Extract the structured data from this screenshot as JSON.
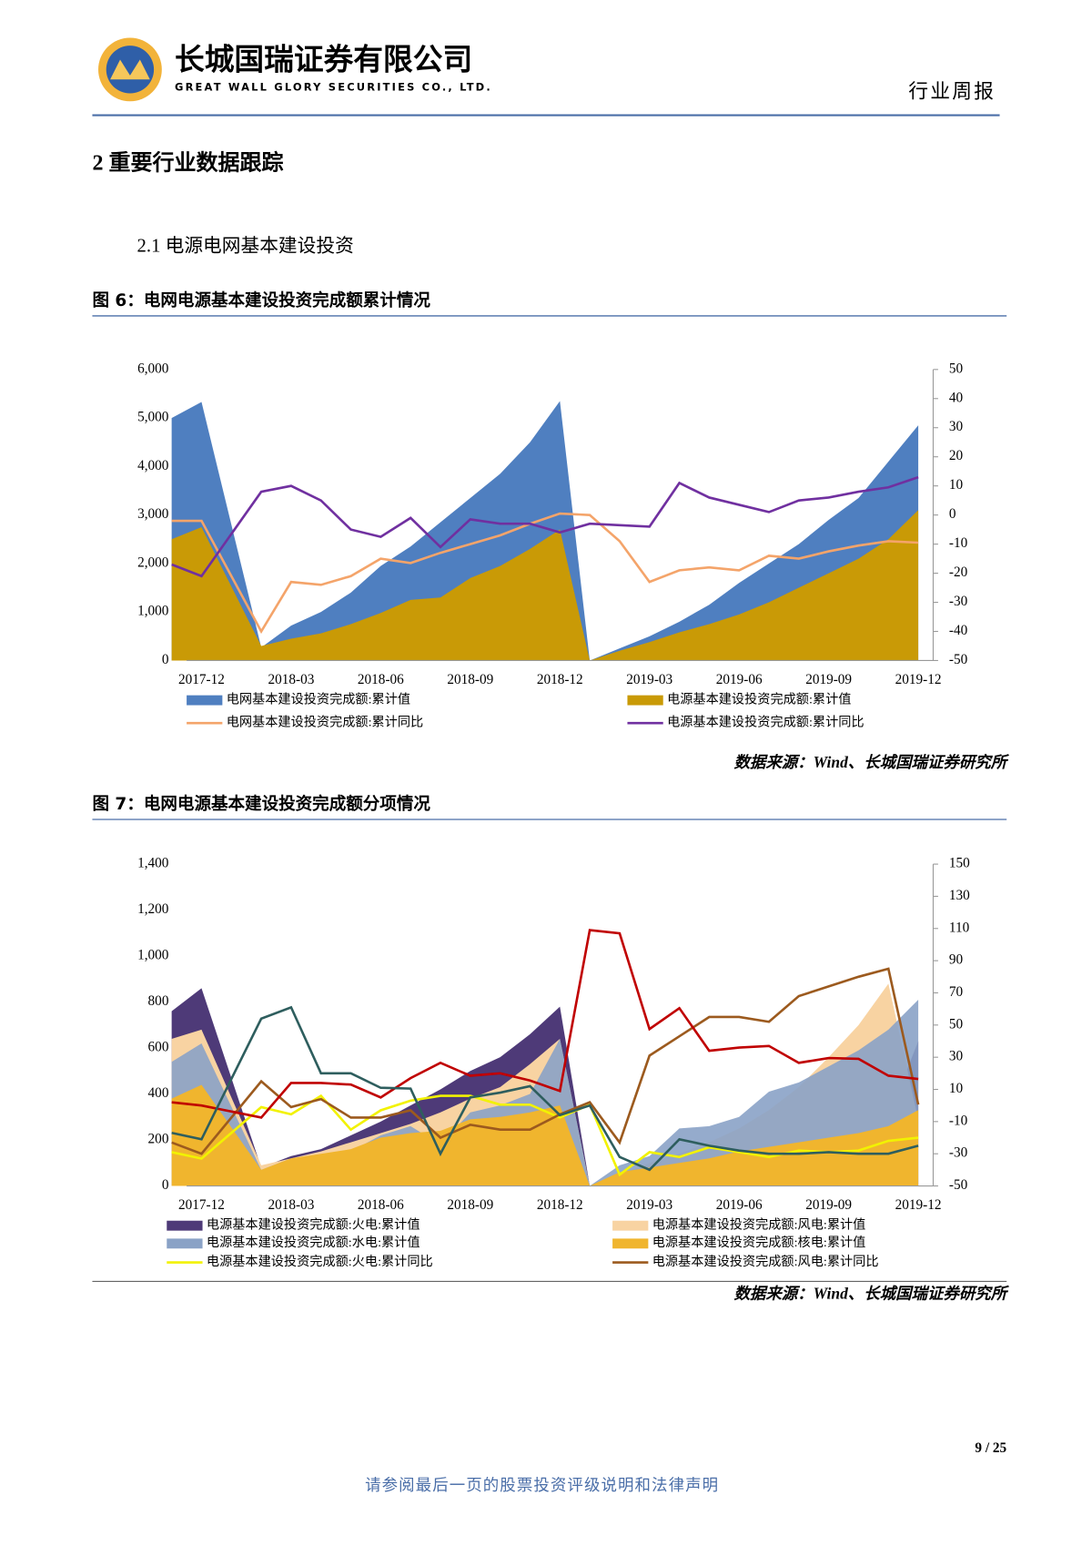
{
  "header": {
    "company": "长城国瑞证券有限公司",
    "company_en": "GREAT WALL GLORY SECURITIES CO., LTD.",
    "report_type": "行业周报"
  },
  "section": {
    "title": "2  重要行业数据跟踪",
    "subtitle": "2.1 电源电网基本建设投资"
  },
  "footer": {
    "page": "9 / 25",
    "disclaimer": "请参阅最后一页的股票投资评级说明和法律声明"
  },
  "chart_data": [
    {
      "type": "combo",
      "title": "图 6：电网电源基本建设投资完成额累计情况",
      "source": "数据来源：Wind、长城国瑞证券研究所",
      "x": [
        "2017-11",
        "2017-12",
        "2018-02",
        "2018-03",
        "2018-04",
        "2018-05",
        "2018-06",
        "2018-07",
        "2018-08",
        "2018-09",
        "2018-10",
        "2018-11",
        "2018-12",
        "2019-01",
        "2019-02",
        "2019-03",
        "2019-04",
        "2019-05",
        "2019-06",
        "2019-07",
        "2019-08",
        "2019-09",
        "2019-10",
        "2019-11",
        "2019-12"
      ],
      "xticks": [
        "2017-12",
        "2018-03",
        "2018-06",
        "2018-09",
        "2018-12",
        "2019-03",
        "2019-06",
        "2019-09",
        "2019-12"
      ],
      "ylim": [
        0,
        6000
      ],
      "yticks": [
        0,
        {
          "value": 1000,
          "label": "1,000"
        },
        {
          "value": 2000,
          "label": "2,000"
        },
        {
          "value": 3000,
          "label": "3,000"
        },
        {
          "value": 4000,
          "label": "4,000"
        },
        {
          "value": 5000,
          "label": "5,000"
        },
        {
          "value": 6000,
          "label": "6,000"
        }
      ],
      "y2lim": [
        -50,
        50
      ],
      "y2ticks": [
        -50,
        -40,
        -30,
        -20,
        -10,
        0,
        10,
        20,
        30,
        40,
        50
      ],
      "series": [
        {
          "name": "电网基本建设投资完成额:累计值",
          "kind": "area",
          "color": "#4f7fc0",
          "values": [
            5000,
            5330,
            270,
            720,
            1000,
            1400,
            1950,
            2350,
            2850,
            3350,
            3850,
            4500,
            5350,
            0,
            250,
            500,
            800,
            1150,
            1600,
            2000,
            2400,
            2900,
            3350,
            4100,
            4850
          ]
        },
        {
          "name": "电源基本建设投资完成额:累计值",
          "kind": "area",
          "color": "#c99a06",
          "values": [
            2500,
            2750,
            300,
            450,
            560,
            750,
            980,
            1250,
            1300,
            1700,
            1950,
            2300,
            2700,
            0,
            200,
            380,
            580,
            750,
            950,
            1200,
            1500,
            1800,
            2100,
            2500,
            3100
          ]
        },
        {
          "name": "电网基本建设投资完成额:累计同比",
          "kind": "line",
          "axis": "y2",
          "color": "#f4a46a",
          "values": [
            -2,
            -2,
            -40,
            -23,
            -24,
            -21,
            -15,
            -16.5,
            -13,
            -10,
            -7,
            -3,
            0.5,
            0,
            -9,
            -23,
            -19,
            -18,
            -19,
            -14,
            -15,
            -12.5,
            -10.5,
            -9,
            -9.5
          ]
        },
        {
          "name": "电源基本建设投资完成额:累计同比",
          "kind": "line",
          "axis": "y2",
          "color": "#7030a0",
          "values": [
            -17,
            -21,
            8,
            10,
            5,
            -5,
            -7.5,
            -1,
            -11,
            -1.5,
            -3,
            -3,
            -6,
            -3,
            -3.5,
            -4,
            11,
            6,
            3.5,
            1,
            5,
            6,
            8,
            9.5,
            13
          ]
        }
      ]
    },
    {
      "type": "combo",
      "title": "图 7：电网电源基本建设投资完成额分项情况",
      "source": "数据来源：Wind、长城国瑞证券研究所",
      "x": [
        "2017-11",
        "2017-12",
        "2018-02",
        "2018-03",
        "2018-04",
        "2018-05",
        "2018-06",
        "2018-07",
        "2018-08",
        "2018-09",
        "2018-10",
        "2018-11",
        "2018-12",
        "2019-01",
        "2019-02",
        "2019-03",
        "2019-04",
        "2019-05",
        "2019-06",
        "2019-07",
        "2019-08",
        "2019-09",
        "2019-10",
        "2019-11",
        "2019-12"
      ],
      "xticks": [
        "2017-12",
        "2018-03",
        "2018-06",
        "2018-09",
        "2018-12",
        "2019-03",
        "2019-06",
        "2019-09",
        "2019-12"
      ],
      "ylim": [
        0,
        1400
      ],
      "yticks": [
        0,
        200,
        400,
        600,
        800,
        {
          "value": 1000,
          "label": "1,000"
        },
        {
          "value": 1200,
          "label": "1,200"
        },
        {
          "value": 1400,
          "label": "1,400"
        }
      ],
      "y2lim": [
        -50,
        150
      ],
      "y2ticks": [
        -50,
        -30,
        -10,
        10,
        30,
        50,
        70,
        90,
        110,
        130,
        150
      ],
      "series": [
        {
          "name": "电源基本建设投资完成额:火电:累计值",
          "kind": "area",
          "color": "#4e3a78",
          "values": [
            760,
            860,
            80,
            130,
            160,
            220,
            280,
            350,
            420,
            500,
            560,
            660,
            780,
            0,
            30,
            60,
            90,
            110,
            140,
            170,
            200,
            230,
            260,
            300,
            630
          ]
        },
        {
          "name": "电源基本建设投资完成额:风电:累计值",
          "kind": "area",
          "color": "#f8d3a2",
          "values": [
            640,
            680,
            90,
            120,
            150,
            190,
            230,
            270,
            320,
            380,
            430,
            530,
            640,
            0,
            50,
            100,
            140,
            190,
            250,
            330,
            430,
            560,
            700,
            880,
            290
          ]
        },
        {
          "name": "电源基本建设投资完成额:水电:累计值",
          "kind": "area",
          "color": "#8aa2c6",
          "values": [
            540,
            620,
            70,
            120,
            120,
            150,
            220,
            260,
            180,
            320,
            350,
            400,
            640,
            0,
            90,
            130,
            250,
            260,
            300,
            410,
            450,
            520,
            590,
            680,
            810
          ]
        },
        {
          "name": "电源基本建设投资完成额:核电:累计值",
          "kind": "area",
          "color": "#f0b52e",
          "values": [
            380,
            440,
            70,
            120,
            140,
            160,
            210,
            230,
            240,
            290,
            300,
            320,
            350,
            0,
            60,
            80,
            100,
            120,
            150,
            170,
            190,
            210,
            230,
            260,
            330
          ]
        },
        {
          "name": "电源基本建设投资完成额:火电:累计同比",
          "kind": "line",
          "axis": "y2",
          "color": "#f2f200",
          "values": [
            -29,
            -33,
            -1,
            -5.5,
            6,
            -15,
            -3,
            3,
            6,
            6,
            0.5,
            0.5,
            -7.5,
            0.5,
            -43,
            -29,
            -32,
            -26,
            -29,
            -32,
            -28,
            -29,
            -28,
            -22,
            -20
          ]
        },
        {
          "name": "电源基本建设投资完成额:风电:累计同比",
          "kind": "line",
          "axis": "y2",
          "color": "#9c5a1e",
          "values": [
            -23,
            -30,
            15,
            -1,
            4,
            -7.5,
            -7.5,
            -3,
            -20,
            -12,
            -15,
            -15,
            -5.5,
            2,
            -23,
            31,
            43,
            55,
            55,
            52,
            68,
            74,
            80,
            85,
            0.6
          ]
        },
        {
          "kind": "line",
          "axis": "y2",
          "color": "#c00000",
          "values": [
            2,
            0,
            -7.5,
            14,
            14,
            13,
            5,
            17,
            26.5,
            18.5,
            20,
            15.5,
            9,
            109,
            107,
            47.5,
            60.5,
            34,
            36,
            37,
            26.5,
            29.5,
            29,
            18.5,
            16.5
          ]
        },
        {
          "kind": "line",
          "axis": "y2",
          "color": "#2e5e5e",
          "values": [
            -17,
            -21,
            54,
            61,
            20,
            20,
            11,
            10.5,
            -30,
            5,
            8,
            12,
            -6,
            0,
            -32,
            -40,
            -21,
            -25,
            -28,
            -30,
            -30,
            -29,
            -30,
            -30,
            -25
          ]
        }
      ]
    }
  ]
}
